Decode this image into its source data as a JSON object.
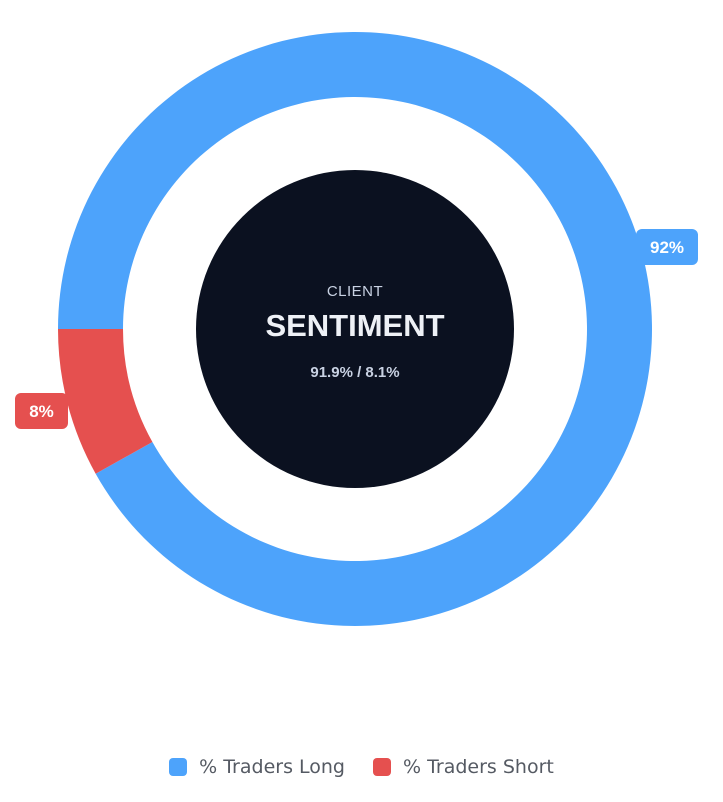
{
  "chart_data": {
    "type": "pie",
    "variant": "donut",
    "categories": [
      "% Traders Long",
      "% Traders Short"
    ],
    "values": [
      91.9,
      8.1
    ],
    "data_labels": [
      "92%",
      "8%"
    ],
    "colors": [
      "#4da3fb",
      "#e5504f"
    ],
    "center": {
      "kicker": "CLIENT",
      "title": "SENTIMENT",
      "ratio": "91.9% / 8.1%",
      "background": "#0b1120",
      "kicker_color": "#c9d2e3",
      "title_color": "#eef1f6",
      "ratio_color": "#c9d2e3"
    },
    "legend_position": "bottom",
    "start_angle": "left"
  },
  "legend": {
    "items": [
      {
        "label": "% Traders Long",
        "color": "#4da3fb"
      },
      {
        "label": "% Traders Short",
        "color": "#e5504f"
      }
    ]
  }
}
